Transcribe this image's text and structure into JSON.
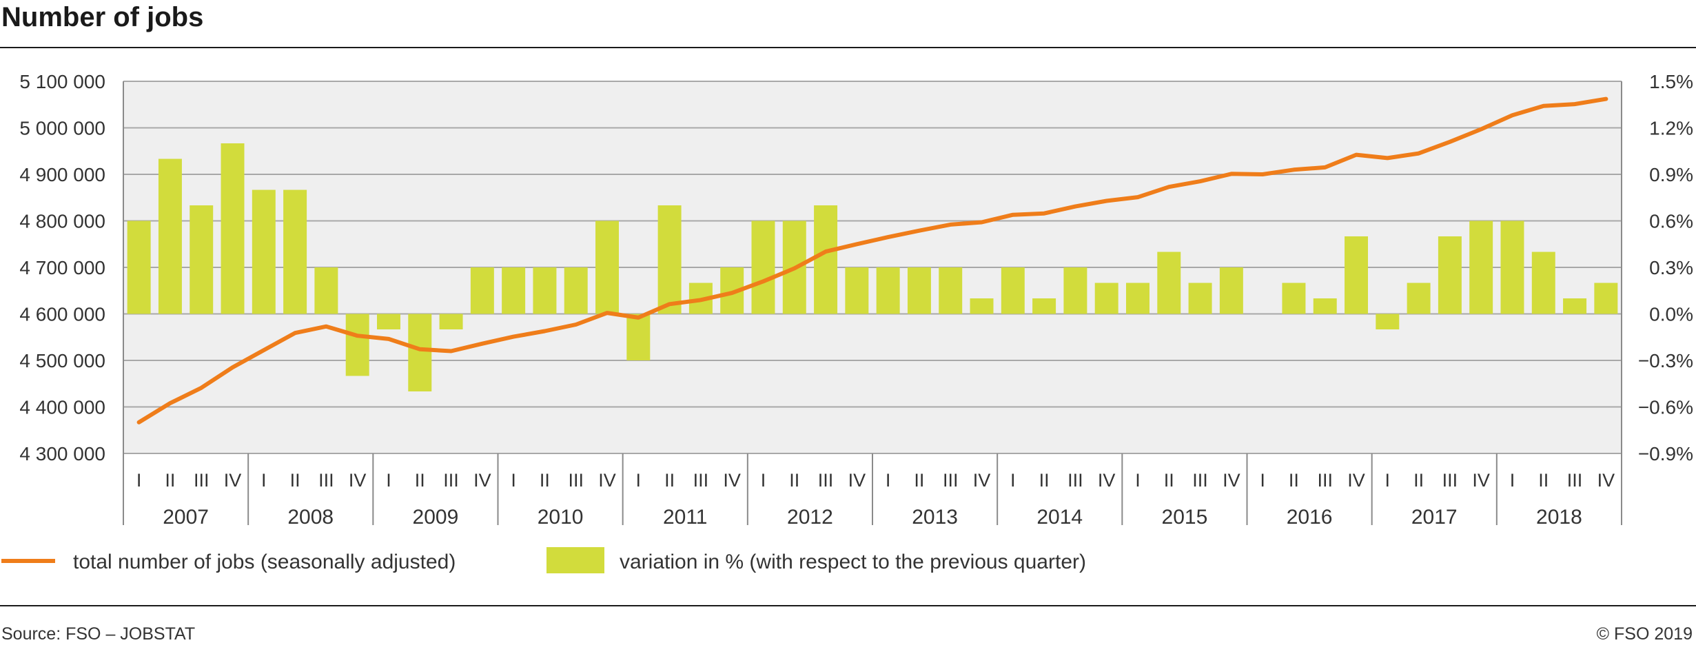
{
  "colors": {
    "line": "#ef7d1a",
    "bar": "#d2dc3c",
    "plot_background": "#efefef",
    "gridline": "#a8a8a8"
  },
  "chart_data": {
    "type": "bar+line",
    "title": "Number of jobs",
    "years": [
      "2007",
      "2008",
      "2009",
      "2010",
      "2011",
      "2012",
      "2013",
      "2014",
      "2015",
      "2016",
      "2017",
      "2018"
    ],
    "quarter_labels": [
      "I",
      "II",
      "III",
      "IV"
    ],
    "y_left": {
      "ylim": [
        4300000,
        5100000
      ],
      "ticks": [
        4300000,
        4400000,
        4500000,
        4600000,
        4700000,
        4800000,
        4900000,
        5000000,
        5100000
      ],
      "tick_labels": [
        "4 300 000",
        "4 400 000",
        "4 500 000",
        "4 600 000",
        "4 700 000",
        "4 800 000",
        "4 900 000",
        "5 000 000",
        "5 100 000"
      ]
    },
    "y_right": {
      "ylim": [
        -0.9,
        1.5
      ],
      "ticks": [
        -0.9,
        -0.6,
        -0.3,
        0.0,
        0.3,
        0.6,
        0.9,
        1.2,
        1.5
      ],
      "tick_labels": [
        "−0.9%",
        "−0.6%",
        "−0.3%",
        "0.0%",
        "0.3%",
        "0.6%",
        "0.9%",
        "1.2%",
        "1.5%"
      ]
    },
    "series": [
      {
        "name": "total number of jobs (seasonally adjusted)",
        "type": "line",
        "axis": "left",
        "values": [
          4367000,
          4408000,
          4441000,
          4485000,
          4522000,
          4559000,
          4573000,
          4553000,
          4546000,
          4524000,
          4520000,
          4536000,
          4551000,
          4563000,
          4577000,
          4602000,
          4592000,
          4621000,
          4630000,
          4645000,
          4670000,
          4698000,
          4734000,
          4750000,
          4765000,
          4779000,
          4792000,
          4797000,
          4813000,
          4816000,
          4831000,
          4843000,
          4851000,
          4873000,
          4885000,
          4901000,
          4900000,
          4910000,
          4915000,
          4942000,
          4935000,
          4945000,
          4970000,
          4997000,
          5027000,
          5047000,
          5051000,
          5062000
        ]
      },
      {
        "name": "variation in % (with respect to the previous quarter)",
        "type": "bar",
        "axis": "right",
        "values": [
          0.6,
          1.0,
          0.7,
          1.1,
          0.8,
          0.8,
          0.3,
          -0.4,
          -0.1,
          -0.5,
          -0.1,
          0.3,
          0.3,
          0.3,
          0.3,
          0.6,
          -0.3,
          0.7,
          0.2,
          0.3,
          0.6,
          0.6,
          0.7,
          0.3,
          0.3,
          0.3,
          0.3,
          0.1,
          0.3,
          0.1,
          0.3,
          0.2,
          0.2,
          0.4,
          0.2,
          0.3,
          0.0,
          0.2,
          0.1,
          0.5,
          -0.1,
          0.2,
          0.5,
          0.6,
          0.6,
          0.4,
          0.1,
          0.2
        ]
      }
    ],
    "legend": {
      "placement": "bottom-left",
      "line_label": "total number of jobs (seasonally adjusted)",
      "bar_label": "variation in % (with respect to the previous quarter)"
    },
    "grid": true
  },
  "footer": {
    "source": "Source: FSO – JOBSTAT",
    "copyright": "© FSO 2019"
  }
}
